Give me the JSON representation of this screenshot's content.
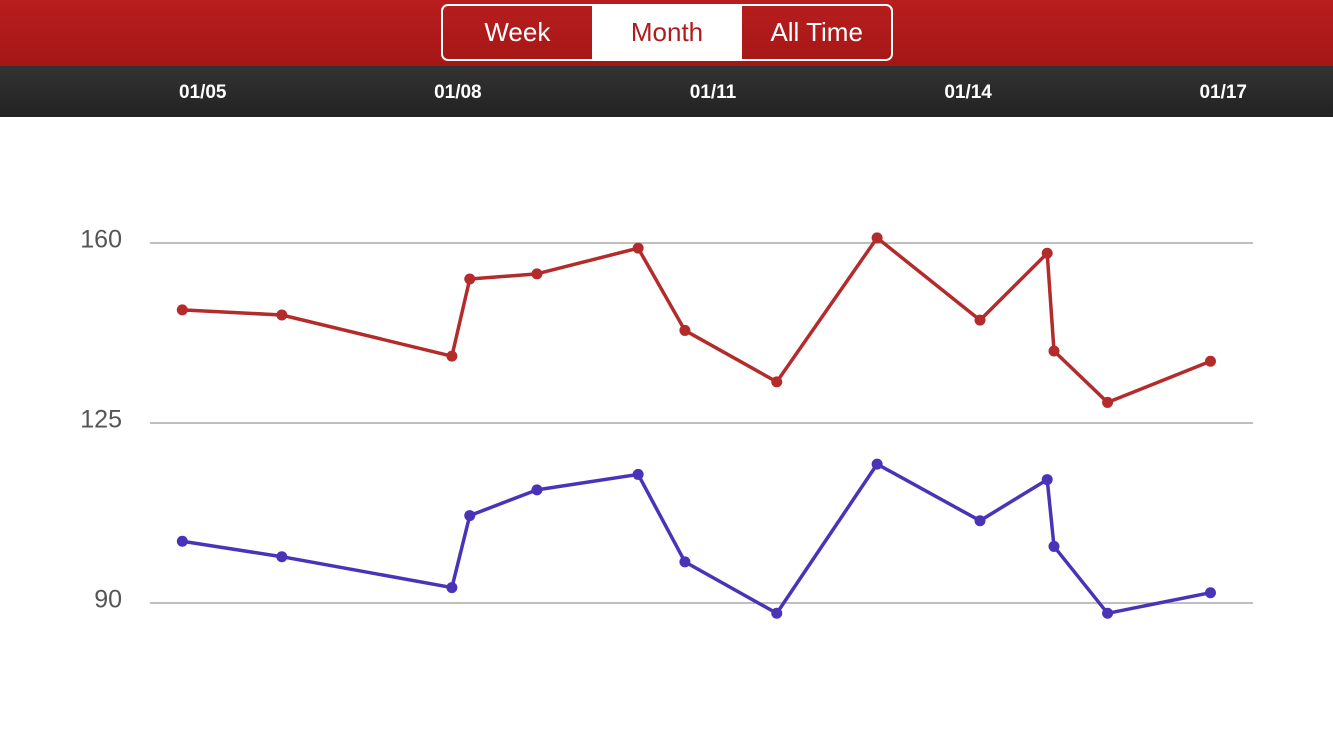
{
  "header": {
    "tabs": [
      "Week",
      "Month",
      "All Time"
    ],
    "selected": 1
  },
  "chart_data": {
    "type": "line",
    "x": [
      4.76,
      5.93,
      7.93,
      8.14,
      8.93,
      10.12,
      10.67,
      11.75,
      12.93,
      14.14,
      14.93,
      15.01,
      15.64,
      16.85
    ],
    "series": [
      {
        "color": "#b32b2b",
        "values": [
          147,
          146,
          138,
          153,
          154,
          159,
          143,
          133,
          161,
          145,
          158,
          139,
          129,
          137
        ]
      },
      {
        "color": "#4b33b9",
        "values": [
          102,
          99,
          93,
          107,
          112,
          115,
          98,
          88,
          117,
          106,
          114,
          101,
          88,
          92
        ]
      }
    ],
    "xlim": [
      4.38,
      17.35
    ],
    "xticks": [
      {
        "value": 5,
        "label": "01/05"
      },
      {
        "value": 8,
        "label": "01/08"
      },
      {
        "value": 11,
        "label": "01/11"
      },
      {
        "value": 14,
        "label": "01/14"
      },
      {
        "value": 17,
        "label": "01/17"
      }
    ],
    "ylim": [
      90,
      160
    ],
    "yticks": [
      90,
      125,
      160
    ],
    "grid": true
  }
}
